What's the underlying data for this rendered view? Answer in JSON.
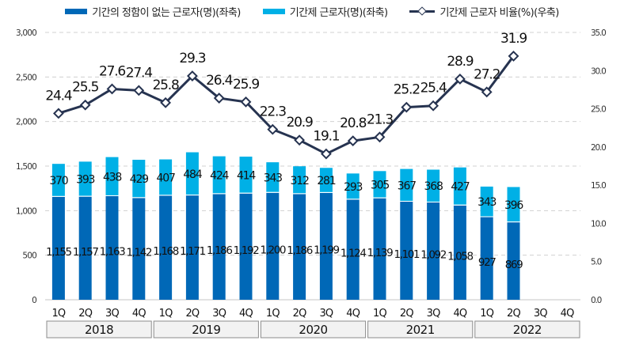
{
  "chart_data": {
    "type": "bar",
    "title": "",
    "legend_position": "top",
    "categories": [
      "1Q",
      "2Q",
      "3Q",
      "4Q",
      "1Q",
      "2Q",
      "3Q",
      "4Q",
      "1Q",
      "2Q",
      "3Q",
      "4Q",
      "1Q",
      "2Q",
      "3Q",
      "4Q",
      "1Q",
      "2Q",
      "3Q",
      "4Q"
    ],
    "years": [
      "2018",
      "2019",
      "2020",
      "2021",
      "2022"
    ],
    "series": [
      {
        "name": "기간의 정함이 없는 근로자(명)(좌축)",
        "type": "bar-stacked",
        "axis": "left",
        "color": "#0068b7",
        "values": [
          1155,
          1157,
          1163,
          1142,
          1168,
          1171,
          1186,
          1192,
          1200,
          1186,
          1199,
          1124,
          1139,
          1101,
          1092,
          1058,
          927,
          869,
          null,
          null
        ],
        "labels": [
          "1,155",
          "1,157",
          "1,163",
          "1,142",
          "1,168",
          "1,171",
          "1,186",
          "1,192",
          "1,200",
          "1,186",
          "1,199",
          "1,124",
          "1,139",
          "1,101",
          "1,092",
          "1,058",
          "927",
          "869",
          "",
          ""
        ]
      },
      {
        "name": "기간제 근로자(명)(좌축)",
        "type": "bar-stacked",
        "axis": "left",
        "color": "#00b0e6",
        "values": [
          370,
          393,
          438,
          429,
          407,
          484,
          424,
          414,
          343,
          312,
          281,
          293,
          305,
          367,
          368,
          427,
          343,
          396,
          null,
          null
        ],
        "labels": [
          "370",
          "393",
          "438",
          "429",
          "407",
          "484",
          "424",
          "414",
          "343",
          "312",
          "281",
          "293",
          "305",
          "367",
          "368",
          "427",
          "343",
          "396",
          "",
          ""
        ]
      },
      {
        "name": "기간제 근로자 비율(%)(우축)",
        "type": "line",
        "axis": "right",
        "color": "#263350",
        "values": [
          24.4,
          25.5,
          27.6,
          27.4,
          25.8,
          29.3,
          26.4,
          25.9,
          22.3,
          20.9,
          19.1,
          20.8,
          21.3,
          25.2,
          25.4,
          28.9,
          27.2,
          31.9,
          null,
          null
        ],
        "labels": [
          "24.4",
          "25.5",
          "27.6",
          "27.4",
          "25.8",
          "29.3",
          "26.4",
          "25.9",
          "22.3",
          "20.9",
          "19.1",
          "20.8",
          "21.3",
          "25.2",
          "25.4",
          "28.9",
          "27.2",
          "31.9",
          "",
          ""
        ]
      }
    ],
    "y_left": {
      "range": [
        0,
        3000
      ],
      "ticks": [
        0,
        500,
        1000,
        1500,
        2000,
        2500,
        3000
      ],
      "tick_labels": [
        "0",
        "500",
        "1,000",
        "1,500",
        "2,000",
        "2,500",
        "3,000"
      ]
    },
    "y_right": {
      "range": [
        0,
        35
      ],
      "ticks": [
        0,
        5,
        10,
        15,
        20,
        25,
        30,
        35
      ],
      "tick_labels": [
        "0.0",
        "5.0",
        "10.0",
        "15.0",
        "20.0",
        "25.0",
        "30.0",
        "35.0"
      ]
    },
    "grid": true
  },
  "legend": {
    "item0": "기간의 정함이 없는 근로자(명)(좌축)",
    "item1": "기간제 근로자(명)(좌축)",
    "item2": "기간제 근로자 비율(%)(우축)"
  }
}
